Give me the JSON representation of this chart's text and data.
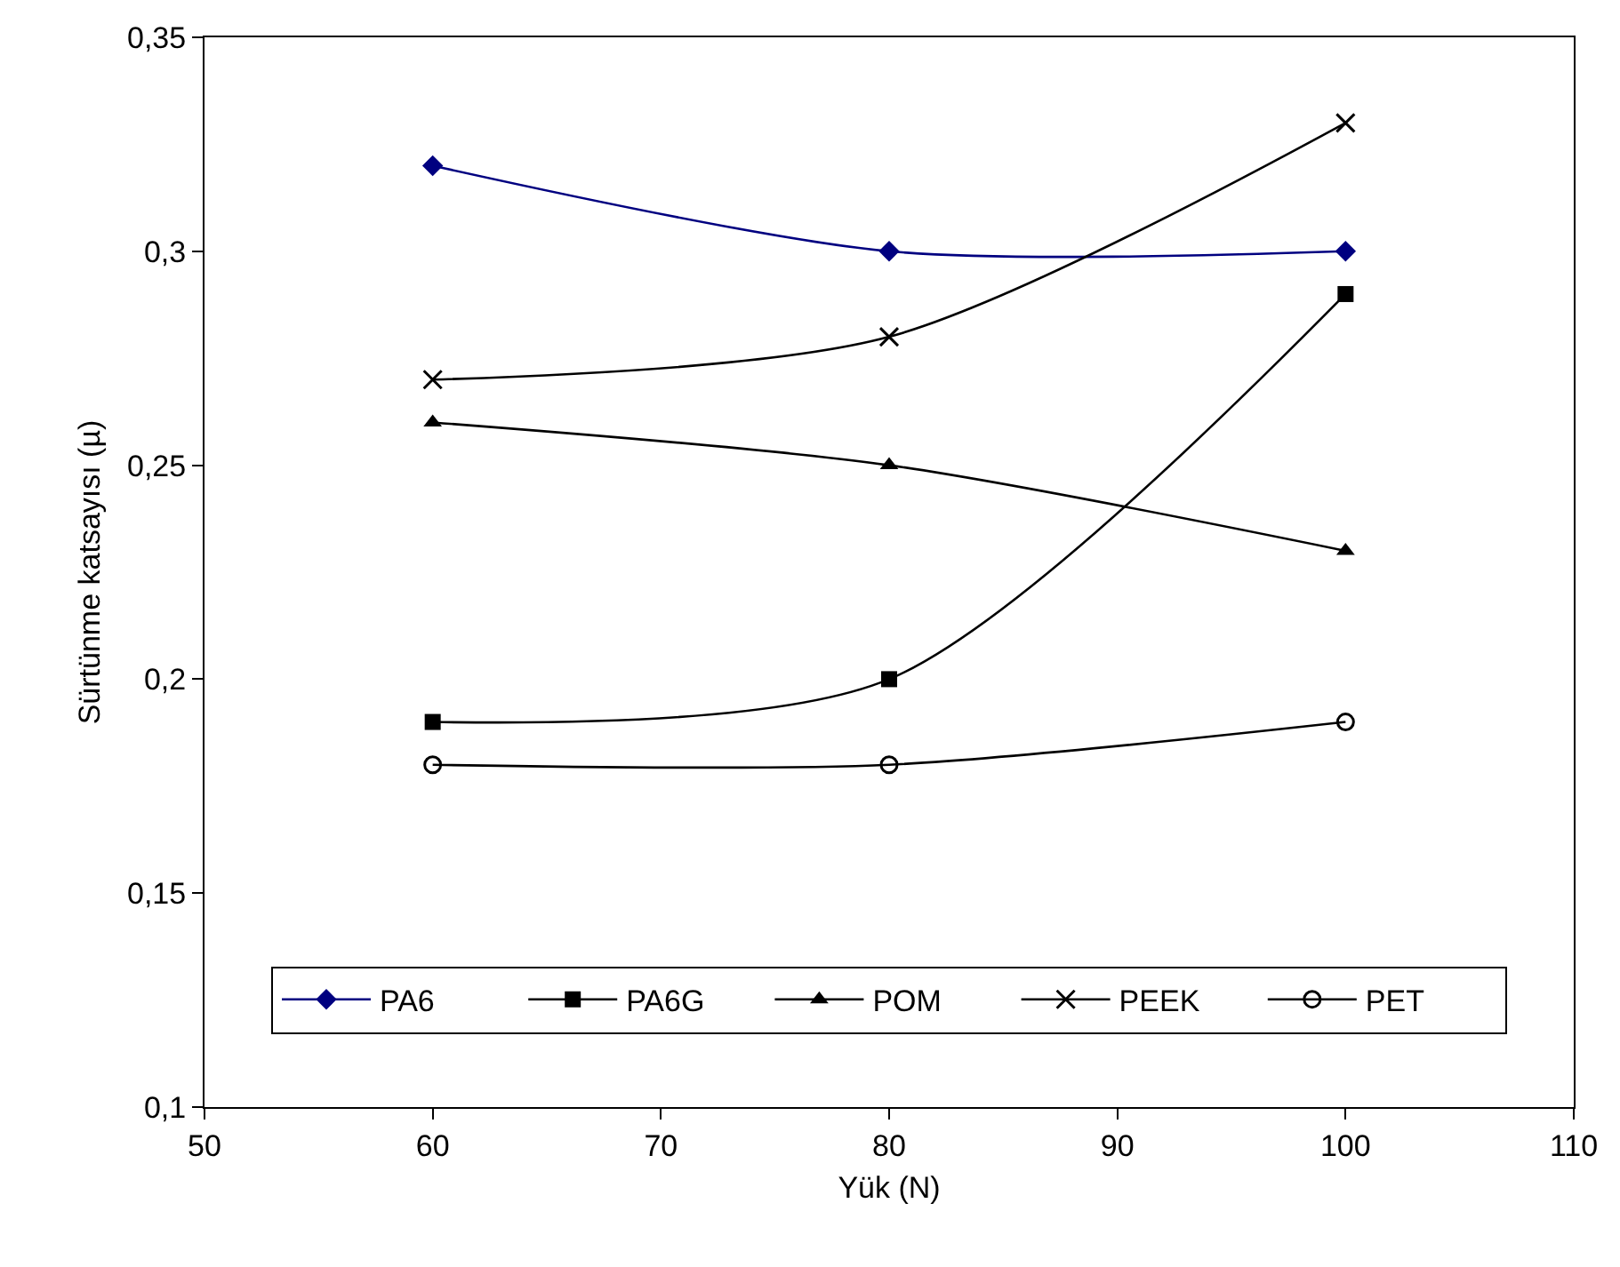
{
  "chart_data": {
    "type": "line",
    "xlabel": "Yük (N)",
    "ylabel": "Sürtünme katsayısı (µ)",
    "x": [
      60,
      80,
      100
    ],
    "series": [
      {
        "name": "PA6",
        "color": "#000080",
        "marker": "diamond",
        "values": [
          0.32,
          0.3,
          0.3
        ]
      },
      {
        "name": "PA6G",
        "color": "#000000",
        "marker": "square",
        "values": [
          0.19,
          0.2,
          0.29
        ]
      },
      {
        "name": "POM",
        "color": "#000000",
        "marker": "triangle",
        "values": [
          0.26,
          0.25,
          0.23
        ]
      },
      {
        "name": "PEEK",
        "color": "#000000",
        "marker": "cross",
        "values": [
          0.27,
          0.28,
          0.33
        ]
      },
      {
        "name": "PET",
        "color": "#000000",
        "marker": "circle",
        "values": [
          0.18,
          0.18,
          0.19
        ]
      }
    ],
    "xlim": [
      50,
      110
    ],
    "xticks": [
      50,
      60,
      70,
      80,
      90,
      100,
      110
    ],
    "ylim": [
      0.1,
      0.35
    ],
    "yticks": [
      {
        "value": 0.1,
        "label": "0,1"
      },
      {
        "value": 0.15,
        "label": "0,15"
      },
      {
        "value": 0.2,
        "label": "0,2"
      },
      {
        "value": 0.25,
        "label": "0,25"
      },
      {
        "value": 0.3,
        "label": "0,3"
      },
      {
        "value": 0.35,
        "label": "0,35"
      }
    ],
    "legend": "bottom",
    "line_style": "solid"
  }
}
